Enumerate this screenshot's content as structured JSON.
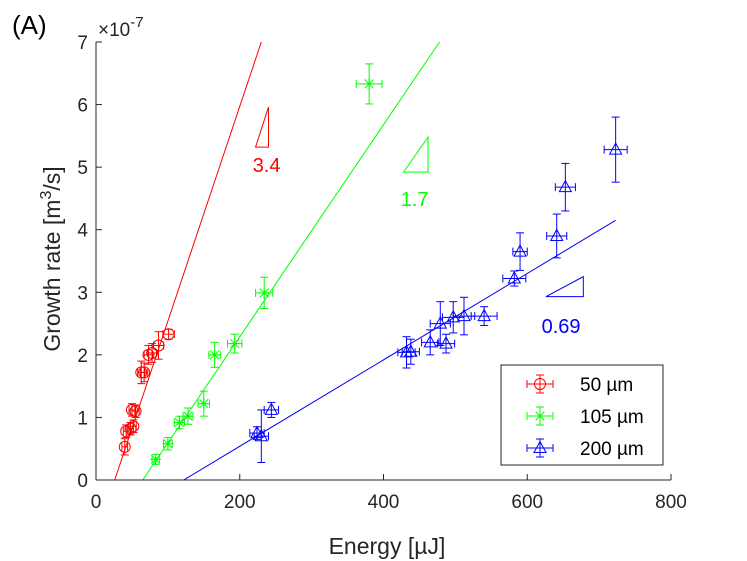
{
  "chart_data": {
    "type": "scatter",
    "panel_label": "(A)",
    "xlabel": "Energy [µJ]",
    "ylabel_prefix": "Growth rate [m",
    "ylabel_sup": "3",
    "ylabel_suffix": "/s]",
    "y_multiplier_base": "×10",
    "y_multiplier_exp": "-7",
    "xlim": [
      0,
      800
    ],
    "ylim": [
      0,
      7
    ],
    "xticks": [
      0,
      200,
      400,
      600,
      800
    ],
    "yticks": [
      0,
      1,
      2,
      3,
      4,
      5,
      6,
      7
    ],
    "legend_position": "bottom-right",
    "series": [
      {
        "name": "50 µm",
        "color": "#ff0000",
        "marker": "circle",
        "points": [
          {
            "x": 40,
            "y": 0.53,
            "xerr": 4,
            "yerr": 0.13
          },
          {
            "x": 42,
            "y": 0.78,
            "xerr": 4,
            "yerr": 0.1
          },
          {
            "x": 48,
            "y": 0.82,
            "xerr": 4,
            "yerr": 0.1
          },
          {
            "x": 50,
            "y": 1.12,
            "xerr": 4,
            "yerr": 0.1
          },
          {
            "x": 52,
            "y": 0.86,
            "xerr": 4,
            "yerr": 0.1
          },
          {
            "x": 55,
            "y": 1.1,
            "xerr": 5,
            "yerr": 0.1
          },
          {
            "x": 63,
            "y": 1.72,
            "xerr": 5,
            "yerr": 0.18
          },
          {
            "x": 67,
            "y": 1.72,
            "xerr": 5,
            "yerr": 0.15
          },
          {
            "x": 73,
            "y": 2.0,
            "xerr": 6,
            "yerr": 0.15
          },
          {
            "x": 78,
            "y": 2.03,
            "xerr": 6,
            "yerr": 0.15
          },
          {
            "x": 87,
            "y": 2.15,
            "xerr": 7,
            "yerr": 0.22
          },
          {
            "x": 101,
            "y": 2.33,
            "xerr": 8,
            "yerr": 0.08
          }
        ],
        "fit": {
          "x": [
            26,
            230
          ],
          "y": [
            0,
            7
          ]
        },
        "slope_label": "3.4",
        "triangle": {
          "x1": 222,
          "x2": 240,
          "y_low": 5.32,
          "y_high": 5.96
        },
        "slope_label_pos": {
          "x": 218,
          "y": 4.92
        }
      },
      {
        "name": "105 µm",
        "color": "#00ff00",
        "marker": "star",
        "points": [
          {
            "x": 83,
            "y": 0.33,
            "xerr": 5,
            "yerr": 0.08
          },
          {
            "x": 100,
            "y": 0.58,
            "xerr": 6,
            "yerr": 0.1
          },
          {
            "x": 116,
            "y": 0.92,
            "xerr": 7,
            "yerr": 0.1
          },
          {
            "x": 128,
            "y": 1.02,
            "xerr": 7,
            "yerr": 0.13
          },
          {
            "x": 150,
            "y": 1.22,
            "xerr": 8,
            "yerr": 0.2
          },
          {
            "x": 165,
            "y": 2.0,
            "xerr": 8,
            "yerr": 0.2
          },
          {
            "x": 193,
            "y": 2.18,
            "xerr": 10,
            "yerr": 0.15
          },
          {
            "x": 234,
            "y": 2.99,
            "xerr": 12,
            "yerr": 0.25
          },
          {
            "x": 380,
            "y": 6.33,
            "xerr": 18,
            "yerr": 0.32
          }
        ],
        "fit": {
          "x": [
            65,
            478
          ],
          "y": [
            0,
            7
          ]
        },
        "slope_label": "1.7",
        "triangle": {
          "x1": 428,
          "x2": 462,
          "y_low": 4.92,
          "y_high": 5.48
        },
        "slope_label_pos": {
          "x": 424,
          "y": 4.38
        }
      },
      {
        "name": "200 µm",
        "color": "#0000ff",
        "marker": "triangle",
        "points": [
          {
            "x": 224,
            "y": 0.75,
            "xerr": 10,
            "yerr": 0.1
          },
          {
            "x": 230,
            "y": 0.7,
            "xerr": 10,
            "yerr": 0.42
          },
          {
            "x": 244,
            "y": 1.12,
            "xerr": 10,
            "yerr": 0.12
          },
          {
            "x": 432,
            "y": 2.04,
            "xerr": 12,
            "yerr": 0.25
          },
          {
            "x": 438,
            "y": 2.05,
            "xerr": 12,
            "yerr": 0.2
          },
          {
            "x": 465,
            "y": 2.2,
            "xerr": 12,
            "yerr": 0.2
          },
          {
            "x": 479,
            "y": 2.5,
            "xerr": 14,
            "yerr": 0.35
          },
          {
            "x": 487,
            "y": 2.18,
            "xerr": 12,
            "yerr": 0.15
          },
          {
            "x": 497,
            "y": 2.6,
            "xerr": 15,
            "yerr": 0.25
          },
          {
            "x": 512,
            "y": 2.62,
            "xerr": 15,
            "yerr": 0.3
          },
          {
            "x": 540,
            "y": 2.62,
            "xerr": 18,
            "yerr": 0.15
          },
          {
            "x": 582,
            "y": 3.22,
            "xerr": 16,
            "yerr": 0.12
          },
          {
            "x": 590,
            "y": 3.65,
            "xerr": 10,
            "yerr": 0.3
          },
          {
            "x": 641,
            "y": 3.9,
            "xerr": 14,
            "yerr": 0.35
          },
          {
            "x": 653,
            "y": 4.68,
            "xerr": 14,
            "yerr": 0.38
          },
          {
            "x": 723,
            "y": 5.28,
            "xerr": 16,
            "yerr": 0.52
          }
        ],
        "fit": {
          "x": [
            122,
            723
          ],
          "y": [
            0,
            4.15
          ]
        },
        "slope_label": "0.69",
        "triangle": {
          "x1": 626,
          "x2": 678,
          "y_low": 2.93,
          "y_high": 3.25
        },
        "slope_label_pos": {
          "x": 620,
          "y": 2.35
        }
      }
    ]
  }
}
